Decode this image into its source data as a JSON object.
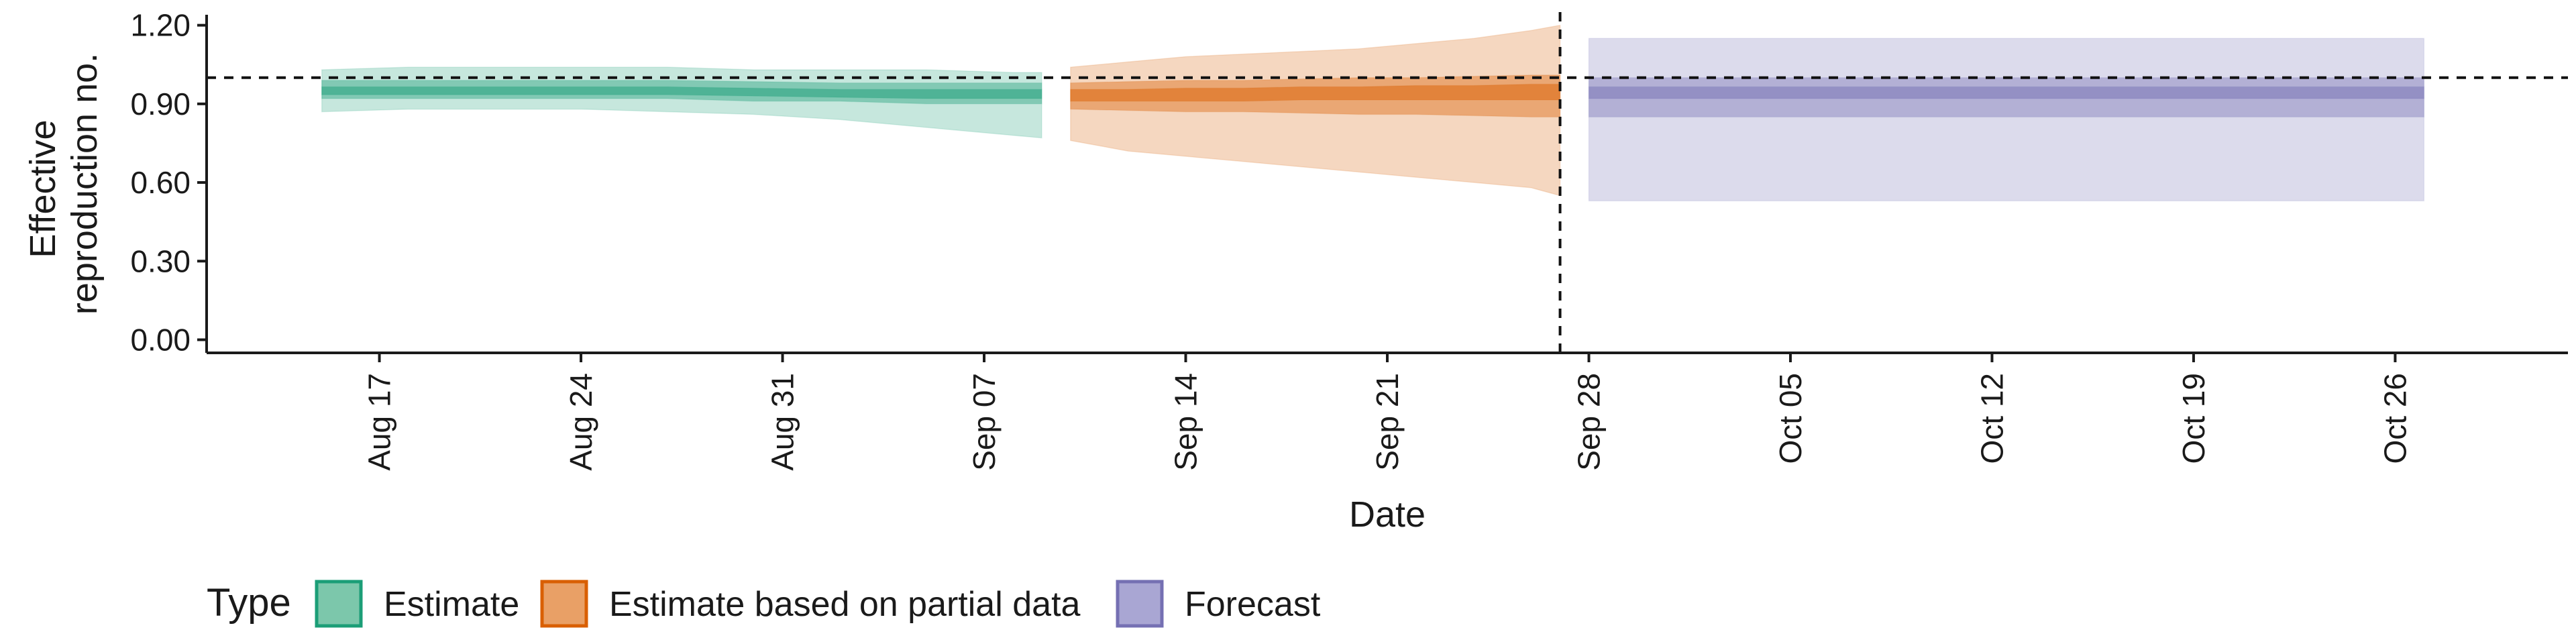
{
  "chart_data": {
    "type": "area",
    "xlabel": "Date",
    "ylabel_lines": [
      "Effective",
      "reproduction no."
    ],
    "ylim": [
      -0.05,
      1.24
    ],
    "yticks": [
      "0.00",
      "0.30",
      "0.60",
      "0.90",
      "1.20"
    ],
    "xlim": [
      "2021-08-11",
      "2021-11-01"
    ],
    "xticks": [
      {
        "date": "2021-08-17",
        "label": "Aug 17"
      },
      {
        "date": "2021-08-24",
        "label": "Aug 24"
      },
      {
        "date": "2021-08-31",
        "label": "Aug 31"
      },
      {
        "date": "2021-09-07",
        "label": "Sep 07"
      },
      {
        "date": "2021-09-14",
        "label": "Sep 14"
      },
      {
        "date": "2021-09-21",
        "label": "Sep 21"
      },
      {
        "date": "2021-09-28",
        "label": "Sep 28"
      },
      {
        "date": "2021-10-05",
        "label": "Oct 05"
      },
      {
        "date": "2021-10-12",
        "label": "Oct 12"
      },
      {
        "date": "2021-10-19",
        "label": "Oct 19"
      },
      {
        "date": "2021-10-26",
        "label": "Oct 26"
      }
    ],
    "reference_line_y": 1.0,
    "reference_line_x": "2021-09-27",
    "grid": false,
    "legend": {
      "title": "Type",
      "position": "bottom-left",
      "entries": [
        {
          "label": "Estimate",
          "fill": "#7cc7ab",
          "stroke": "#1b9e77"
        },
        {
          "label": "Estimate based on partial data",
          "fill": "#e9a066",
          "stroke": "#d95f02"
        },
        {
          "label": "Forecast",
          "fill": "#a9a6d3",
          "stroke": "#7570b3"
        }
      ]
    },
    "series": [
      {
        "name": "Estimate",
        "color": "#1b9e77",
        "x": [
          "2021-08-15",
          "2021-08-18",
          "2021-08-21",
          "2021-08-24",
          "2021-08-27",
          "2021-08-30",
          "2021-09-02",
          "2021-09-05",
          "2021-09-08",
          "2021-09-09"
        ],
        "median": [
          0.95,
          0.95,
          0.95,
          0.95,
          0.95,
          0.945,
          0.94,
          0.935,
          0.935,
          0.935
        ],
        "lower90": [
          0.87,
          0.88,
          0.88,
          0.88,
          0.87,
          0.86,
          0.84,
          0.81,
          0.78,
          0.77
        ],
        "upper90": [
          1.03,
          1.04,
          1.04,
          1.04,
          1.04,
          1.03,
          1.03,
          1.03,
          1.02,
          1.02
        ],
        "lower50": [
          0.92,
          0.92,
          0.92,
          0.92,
          0.92,
          0.91,
          0.91,
          0.9,
          0.9,
          0.9
        ],
        "upper50": [
          0.99,
          0.99,
          0.99,
          0.99,
          0.99,
          0.985,
          0.98,
          0.98,
          0.98,
          0.98
        ],
        "lower20": [
          0.935,
          0.935,
          0.935,
          0.935,
          0.935,
          0.93,
          0.925,
          0.92,
          0.92,
          0.92
        ],
        "upper20": [
          0.965,
          0.965,
          0.965,
          0.965,
          0.965,
          0.96,
          0.955,
          0.955,
          0.955,
          0.955
        ]
      },
      {
        "name": "Estimate based on partial data",
        "color": "#d95f02",
        "x": [
          "2021-09-10",
          "2021-09-12",
          "2021-09-14",
          "2021-09-16",
          "2021-09-18",
          "2021-09-20",
          "2021-09-22",
          "2021-09-24",
          "2021-09-26",
          "2021-09-27"
        ],
        "median": [
          0.93,
          0.935,
          0.935,
          0.935,
          0.94,
          0.94,
          0.94,
          0.945,
          0.945,
          0.945
        ],
        "lower90": [
          0.76,
          0.72,
          0.7,
          0.68,
          0.66,
          0.64,
          0.62,
          0.6,
          0.58,
          0.55
        ],
        "upper90": [
          1.04,
          1.06,
          1.08,
          1.09,
          1.1,
          1.11,
          1.13,
          1.15,
          1.18,
          1.2
        ],
        "lower50": [
          0.88,
          0.875,
          0.87,
          0.87,
          0.865,
          0.86,
          0.86,
          0.855,
          0.85,
          0.85
        ],
        "upper50": [
          0.98,
          0.985,
          0.99,
          0.99,
          0.995,
          1.0,
          1.0,
          1.005,
          1.01,
          1.01
        ],
        "lower20": [
          0.91,
          0.91,
          0.91,
          0.91,
          0.915,
          0.915,
          0.915,
          0.915,
          0.915,
          0.915
        ],
        "upper20": [
          0.955,
          0.955,
          0.96,
          0.96,
          0.965,
          0.965,
          0.97,
          0.97,
          0.975,
          0.975
        ]
      },
      {
        "name": "Forecast",
        "color": "#7570b3",
        "x": [
          "2021-09-28",
          "2021-10-27"
        ],
        "median": [
          0.94,
          0.94
        ],
        "lower90": [
          0.53,
          0.53
        ],
        "upper90": [
          1.15,
          1.15
        ],
        "lower50": [
          0.85,
          0.85
        ],
        "upper50": [
          1.0,
          1.0
        ],
        "lower20": [
          0.92,
          0.92
        ],
        "upper20": [
          0.965,
          0.965
        ]
      }
    ]
  }
}
